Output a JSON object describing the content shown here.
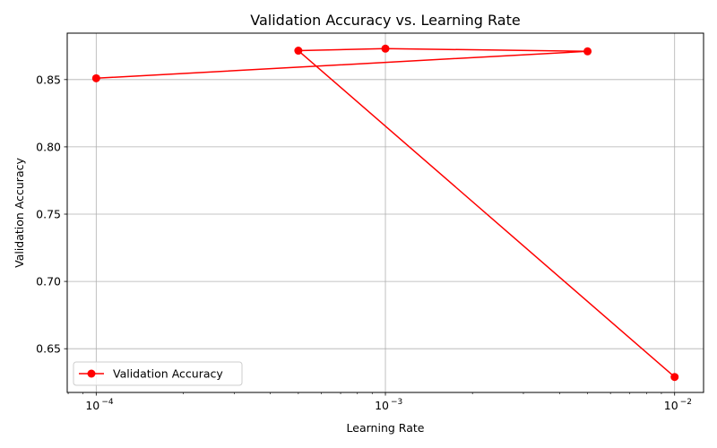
{
  "chart_data": {
    "type": "line",
    "title": "Validation Accuracy vs. Learning Rate",
    "xlabel": "Learning Rate",
    "ylabel": "Validation Accuracy",
    "xscale": "log",
    "xlim": [
      7.94e-05,
      0.01259
    ],
    "ylim": [
      0.6175,
      0.8845
    ],
    "x_ticks": [
      {
        "value": 0.0001,
        "base": "10",
        "exp": "−4"
      },
      {
        "value": 0.001,
        "base": "10",
        "exp": "−3"
      },
      {
        "value": 0.01,
        "base": "10",
        "exp": "−2"
      }
    ],
    "y_ticks": [
      {
        "value": 0.65,
        "label": "0.65"
      },
      {
        "value": 0.7,
        "label": "0.70"
      },
      {
        "value": 0.75,
        "label": "0.75"
      },
      {
        "value": 0.8,
        "label": "0.80"
      },
      {
        "value": 0.85,
        "label": "0.85"
      }
    ],
    "grid": true,
    "legend_position": "lower-left",
    "series": [
      {
        "name": "Validation Accuracy",
        "color": "#ff0000",
        "marker": "circle",
        "x": [
          0.0001,
          0.005,
          0.001,
          0.0005,
          0.01
        ],
        "y": [
          0.851,
          0.871,
          0.873,
          0.8715,
          0.629
        ]
      }
    ]
  }
}
